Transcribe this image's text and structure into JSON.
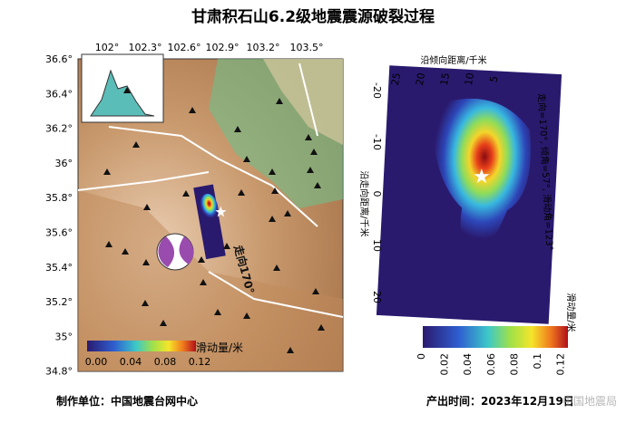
{
  "title": "甘肃积石山6.2级地震震源破裂过程",
  "map": {
    "lon_ticks": [
      "102°",
      "102.3°",
      "102.6°",
      "102.9°",
      "103.2°",
      "103.5°"
    ],
    "lat_ticks": [
      "36.6°",
      "36.4°",
      "36.2°",
      "36°",
      "35.8°",
      "35.6°",
      "35.4°",
      "35.2°",
      "35°",
      "34.8°"
    ],
    "strike_label": "走向170°",
    "colorbar": {
      "ticks": [
        "0.00",
        "0.04",
        "0.08",
        "0.12"
      ],
      "label": "滑动量/米"
    }
  },
  "slip_model": {
    "dip_axis_label": "沿倾向距离/千米",
    "dip_ticks": [
      "25",
      "20",
      "15",
      "10",
      "5"
    ],
    "strike_axis_label": "沿走向距离/千米",
    "strike_ticks": [
      "-20",
      "-10",
      "0",
      "10",
      "20"
    ],
    "mechanism": "走向=170°, 倾角=57°, 滑动角=123°",
    "colorbar": {
      "ticks": [
        "0",
        "0.02",
        "0.04",
        "0.06",
        "0.08",
        "0.1",
        "0.12"
      ],
      "label": "滑动量/米"
    }
  },
  "footer": {
    "producer": "制作单位：中国地震台网中心",
    "time": "产出时间：2023年12月19日"
  },
  "watermark": "中国地震局"
}
